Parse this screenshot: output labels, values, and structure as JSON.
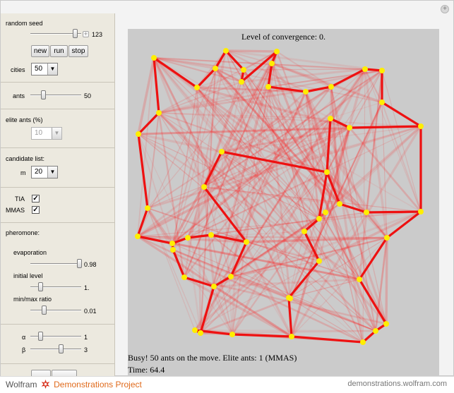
{
  "controls": {
    "random_seed": {
      "label": "random seed",
      "value": "123",
      "fraction": 0.88
    },
    "buttons": {
      "new": "new",
      "run": "run",
      "stop": "stop"
    },
    "cities": {
      "label": "cities",
      "value": "50"
    },
    "ants": {
      "label": "ants",
      "value": "50",
      "fraction": 0.25
    },
    "elite_ants": {
      "label": "elite ants (%)",
      "value": "10"
    },
    "candidate_list": {
      "label": "candidate list:",
      "m_label": "m",
      "m_value": "20"
    },
    "tia": {
      "label": "TIA",
      "checked": "✓"
    },
    "mmas": {
      "label": "MMAS",
      "checked": "✓"
    },
    "pheromone": {
      "label": "pheromone:"
    },
    "evaporation": {
      "label": "evaporation",
      "value": "0.98",
      "fraction": 0.96
    },
    "initial_level": {
      "label": "initial level",
      "value": "1.",
      "fraction": 0.2
    },
    "min_max_ratio": {
      "label": "min/max ratio",
      "value": "0.01",
      "fraction": 0.26
    },
    "alpha": {
      "label": "α",
      "value": "1",
      "fraction": 0.2
    },
    "beta": {
      "label": "β",
      "value": "3",
      "fraction": 0.6
    }
  },
  "plot": {
    "title": "Level of convergence: 0.",
    "status": "Busy! 50 ants on the move. Elite ants: 1 (MMAS)",
    "time": "Time: 64.4",
    "colors": {
      "tour": "#ee1111",
      "city": "#ffee00",
      "background": "#cbcbcb",
      "pheromone": "#ff2222"
    }
  },
  "footer": {
    "brand_left": "Wolfram",
    "brand_right": "Demonstrations Project",
    "site": "demonstrations.wolfram.com"
  }
}
